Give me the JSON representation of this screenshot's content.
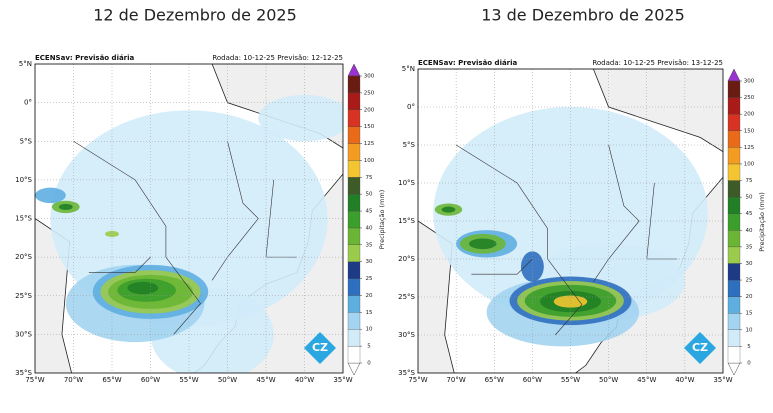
{
  "panels": [
    {
      "title": "12 de Dezembro de 2025",
      "model": "ECENSav: Previsão diária",
      "run": "Rodada: 10-12-25 Previsão: 12-12-25",
      "logo": "CZ"
    },
    {
      "title": "13 de Dezembro de 2025",
      "model": "ECENSav: Previsão diária",
      "run": "Rodada: 10-12-25 Previsão: 13-12-25",
      "logo": "CZ"
    }
  ],
  "lat_labels": [
    "5°N",
    "0°",
    "5°S",
    "10°S",
    "15°S",
    "20°S",
    "25°S",
    "30°S",
    "35°S"
  ],
  "lon_labels": [
    "75°W",
    "70°W",
    "65°W",
    "60°W",
    "55°W",
    "50°W",
    "45°W",
    "40°W",
    "35°W"
  ],
  "colorbar": {
    "label": "Precipitação (mm)",
    "levels": [
      0,
      5,
      10,
      15,
      20,
      25,
      30,
      35,
      40,
      45,
      50,
      75,
      100,
      125,
      150,
      200,
      250,
      300
    ],
    "colors": [
      "#ffffff",
      "#d2ebf9",
      "#a3d4f1",
      "#5eaee0",
      "#2f6fbf",
      "#1d3a86",
      "#9bcb4a",
      "#6ab634",
      "#3b9f2b",
      "#218025",
      "#3e5b27",
      "#f2c531",
      "#f39c21",
      "#e96a19",
      "#d73222",
      "#a91a19",
      "#6b1c12"
    ],
    "extend_color": "#9b31d2"
  }
}
